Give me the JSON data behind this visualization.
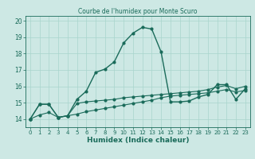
{
  "title": "Courbe de l'humidex pour Monte Scuro",
  "xlabel": "Humidex (Indice chaleur)",
  "bg_color": "#cde8e4",
  "grid_color": "#a8d5cc",
  "line_color": "#1a6b5a",
  "xlim": [
    -0.5,
    23.5
  ],
  "ylim": [
    13.5,
    20.3
  ],
  "xticks": [
    0,
    1,
    2,
    3,
    4,
    5,
    6,
    7,
    8,
    9,
    10,
    11,
    12,
    13,
    14,
    15,
    16,
    17,
    18,
    19,
    20,
    21,
    22,
    23
  ],
  "yticks": [
    14,
    15,
    16,
    17,
    18,
    19,
    20
  ],
  "line1_x": [
    0,
    1,
    2,
    3,
    4,
    5,
    6,
    7,
    8,
    9,
    10,
    11,
    12,
    13,
    14,
    15,
    16,
    17,
    18,
    19,
    20,
    21,
    22,
    23
  ],
  "line1_y": [
    14.0,
    14.9,
    14.9,
    14.1,
    14.2,
    15.2,
    15.7,
    16.85,
    17.05,
    17.5,
    18.65,
    19.25,
    19.6,
    19.5,
    18.1,
    15.05,
    15.05,
    15.1,
    15.35,
    15.5,
    16.1,
    16.1,
    15.2,
    15.85
  ],
  "line2_x": [
    0,
    1,
    2,
    3,
    4,
    5,
    6,
    7,
    8,
    9,
    10,
    11,
    12,
    13,
    14,
    15,
    16,
    17,
    18,
    19,
    20,
    21,
    22,
    23
  ],
  "line2_y": [
    14.0,
    14.9,
    14.9,
    14.1,
    14.2,
    14.95,
    15.05,
    15.1,
    15.15,
    15.2,
    15.3,
    15.35,
    15.4,
    15.45,
    15.5,
    15.55,
    15.6,
    15.65,
    15.7,
    15.8,
    15.95,
    16.05,
    15.85,
    16.0
  ],
  "line3_x": [
    0,
    1,
    2,
    3,
    4,
    5,
    6,
    7,
    8,
    9,
    10,
    11,
    12,
    13,
    14,
    15,
    16,
    17,
    18,
    19,
    20,
    21,
    22,
    23
  ],
  "line3_y": [
    14.0,
    14.25,
    14.4,
    14.1,
    14.2,
    14.3,
    14.45,
    14.55,
    14.65,
    14.75,
    14.85,
    14.95,
    15.05,
    15.15,
    15.3,
    15.4,
    15.45,
    15.5,
    15.55,
    15.6,
    15.7,
    15.8,
    15.65,
    15.75
  ]
}
